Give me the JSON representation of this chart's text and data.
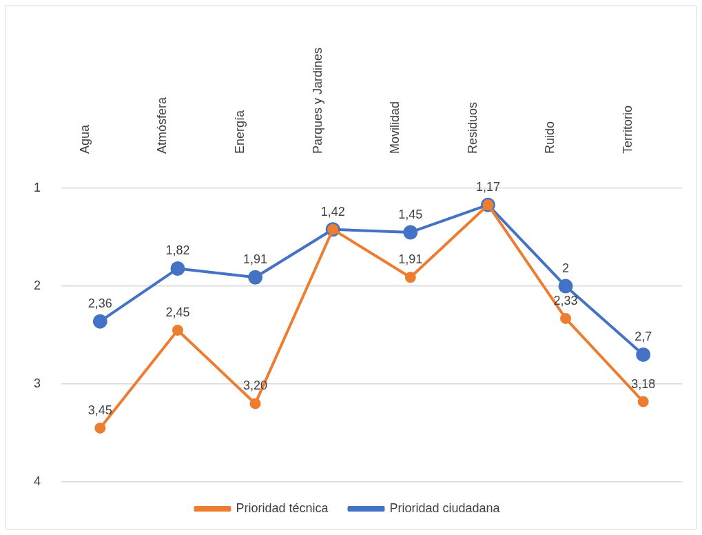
{
  "chart_data": {
    "type": "line",
    "categories": [
      "Agua",
      "Atmósfera",
      "Energía",
      "Parques y Jardines",
      "Movilidad",
      "Residuos",
      "Ruido",
      "Territorio"
    ],
    "series": [
      {
        "name": "Prioridad ciudadana",
        "color": "#4472c4",
        "values": [
          2.36,
          1.82,
          1.91,
          1.42,
          1.45,
          1.17,
          2,
          2.7
        ],
        "value_labels": [
          "2,36",
          "1,82",
          "1,91",
          "1,42",
          "1,45",
          null,
          "2",
          "2,7"
        ]
      },
      {
        "name": "Prioridad técnica",
        "color": "#ed7d31",
        "values": [
          3.45,
          2.45,
          3.2,
          1.42,
          1.91,
          1.17,
          2.33,
          3.18
        ],
        "value_labels": [
          "3,45",
          "2,45",
          "3,20",
          null,
          "1,91",
          "1,17",
          "2,33",
          "3,18"
        ]
      }
    ],
    "ylim": [
      4,
      1
    ],
    "yticks": [
      1,
      2,
      3,
      4
    ],
    "grid": "y",
    "legend": "bottom",
    "marker": "circle",
    "line_style": "solid"
  }
}
